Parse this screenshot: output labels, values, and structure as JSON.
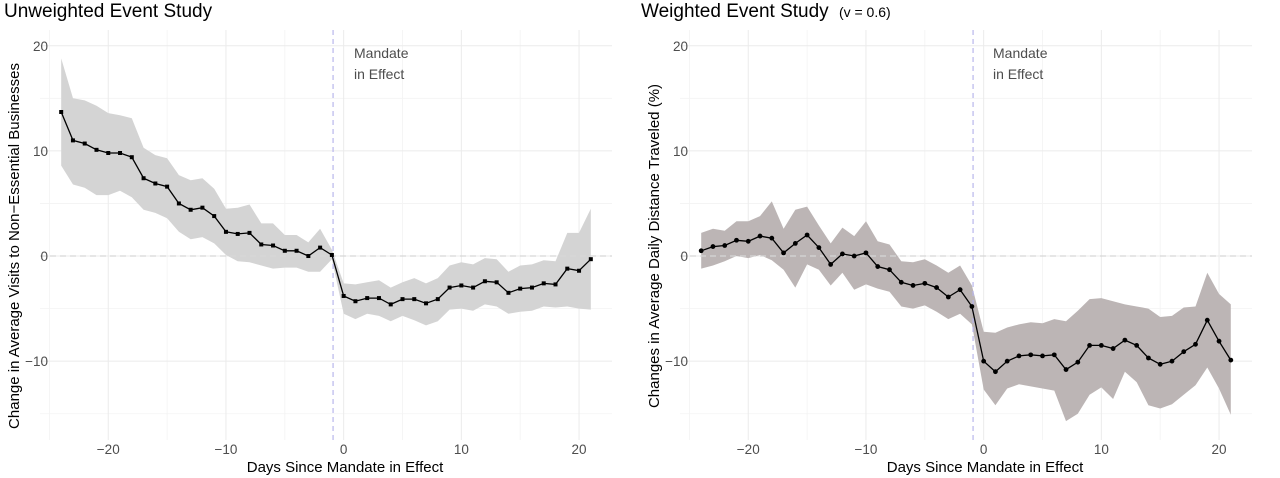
{
  "chart_data": [
    {
      "type": "line",
      "title": "Unweighted Event Study",
      "subtitle": "",
      "xlabel": "Days Since Mandate in Effect",
      "ylabel": "Change in Average Visits to Non−Essential Businesses",
      "xlim": [
        -25.8,
        22.8
      ],
      "ylim": [
        -17.5,
        21.5
      ],
      "x_ticks": [
        -20,
        -10,
        0,
        10,
        20
      ],
      "x_tick_labels": [
        "−20",
        "−10",
        "0",
        "10",
        "20"
      ],
      "y_ticks": [
        -10,
        0,
        10,
        20
      ],
      "y_tick_labels": [
        "−10",
        "0",
        "10",
        "20"
      ],
      "grid": true,
      "reference_lines": {
        "vertical_x": -0.9,
        "horizontal_y": 0
      },
      "annotation": [
        "Mandate",
        "in Effect"
      ],
      "marker": "square",
      "band_color": "#d4d4d4",
      "line_color": "#000000",
      "x": [
        -24,
        -23,
        -22,
        -21,
        -20,
        -19,
        -18,
        -17,
        -16,
        -15,
        -14,
        -13,
        -12,
        -11,
        -10,
        -9,
        -8,
        -7,
        -6,
        -5,
        -4,
        -3,
        -2,
        -1,
        0,
        1,
        2,
        3,
        4,
        5,
        6,
        7,
        8,
        9,
        10,
        11,
        12,
        13,
        14,
        15,
        16,
        17,
        18,
        19,
        20,
        21
      ],
      "y": [
        13.7,
        11.0,
        10.7,
        10.1,
        9.8,
        9.8,
        9.4,
        7.4,
        6.9,
        6.6,
        5.0,
        4.4,
        4.6,
        3.8,
        2.3,
        2.1,
        2.2,
        1.1,
        1.0,
        0.5,
        0.5,
        0.0,
        0.8,
        0.1,
        -3.8,
        -4.3,
        -4.0,
        -4.0,
        -4.6,
        -4.1,
        -4.1,
        -4.5,
        -4.1,
        -3.0,
        -2.8,
        -3.0,
        -2.4,
        -2.5,
        -3.5,
        -3.1,
        -3.0,
        -2.6,
        -2.7,
        -1.2,
        -1.4,
        -0.3
      ],
      "lower": [
        8.6,
        6.8,
        6.5,
        5.8,
        5.8,
        6.2,
        5.6,
        4.4,
        4.1,
        3.6,
        2.3,
        1.6,
        1.8,
        1.2,
        0.1,
        -0.5,
        -0.6,
        -0.9,
        -1.2,
        -1.1,
        -1.1,
        -1.5,
        -1.5,
        -0.3,
        -5.5,
        -6.0,
        -5.5,
        -5.7,
        -6.2,
        -5.7,
        -6.1,
        -6.6,
        -6.2,
        -5.1,
        -5.0,
        -5.2,
        -4.6,
        -4.8,
        -5.5,
        -5.3,
        -5.2,
        -4.8,
        -4.9,
        -4.8,
        -5.0,
        -5.1
      ],
      "upper": [
        18.8,
        15.0,
        14.8,
        14.3,
        13.6,
        13.4,
        13.1,
        10.3,
        9.6,
        9.3,
        7.7,
        7.2,
        7.4,
        6.4,
        4.5,
        4.6,
        4.9,
        3.1,
        3.1,
        2.0,
        2.0,
        1.3,
        2.6,
        0.6,
        -2.6,
        -2.7,
        -2.5,
        -2.3,
        -3.0,
        -2.5,
        -2.1,
        -2.6,
        -2.1,
        -0.9,
        -0.6,
        -0.8,
        -0.2,
        -0.3,
        -1.5,
        -0.9,
        -0.8,
        -0.4,
        -0.5,
        2.2,
        2.2,
        4.5
      ]
    },
    {
      "type": "line",
      "title": "Weighted Event Study",
      "subtitle": "(v = 0.6)",
      "xlabel": "Days Since Mandate in Effect",
      "ylabel": "Changes in Average Daily Distance Traveled (%)",
      "xlim": [
        -25.8,
        22.8
      ],
      "ylim": [
        -17.5,
        21.5
      ],
      "x_ticks": [
        -20,
        -10,
        0,
        10,
        20
      ],
      "x_tick_labels": [
        "−20",
        "−10",
        "0",
        "10",
        "20"
      ],
      "y_ticks": [
        -10,
        0,
        10,
        20
      ],
      "y_tick_labels": [
        "−10",
        "0",
        "10",
        "20"
      ],
      "grid": true,
      "reference_lines": {
        "vertical_x": -0.9,
        "horizontal_y": 0
      },
      "annotation": [
        "Mandate",
        "in Effect"
      ],
      "marker": "circle",
      "band_color": "#bcb5b5",
      "line_color": "#000000",
      "x": [
        -24,
        -23,
        -22,
        -21,
        -20,
        -19,
        -18,
        -17,
        -16,
        -15,
        -14,
        -13,
        -12,
        -11,
        -10,
        -9,
        -8,
        -7,
        -6,
        -5,
        -4,
        -3,
        -2,
        -1,
        0,
        1,
        2,
        3,
        4,
        5,
        6,
        7,
        8,
        9,
        10,
        11,
        12,
        13,
        14,
        15,
        16,
        17,
        18,
        19,
        20,
        21
      ],
      "y": [
        0.5,
        0.9,
        1.0,
        1.5,
        1.4,
        1.9,
        1.7,
        0.3,
        1.2,
        2.0,
        0.8,
        -0.8,
        0.2,
        0.0,
        0.3,
        -1.0,
        -1.3,
        -2.5,
        -2.8,
        -2.6,
        -3.0,
        -3.9,
        -3.2,
        -4.8,
        -10.0,
        -11.0,
        -10.0,
        -9.5,
        -9.4,
        -9.5,
        -9.4,
        -10.8,
        -10.1,
        -8.5,
        -8.5,
        -8.8,
        -8.0,
        -8.5,
        -9.7,
        -10.3,
        -10.0,
        -9.1,
        -8.4,
        -6.1,
        -8.1,
        -9.9
      ],
      "lower": [
        -1.2,
        -0.9,
        -0.5,
        0.0,
        -0.2,
        0.1,
        -0.4,
        -1.3,
        -3.0,
        -0.8,
        -1.3,
        -2.8,
        -1.6,
        -3.2,
        -2.7,
        -3.1,
        -3.4,
        -4.8,
        -5.0,
        -4.7,
        -5.3,
        -6.0,
        -5.5,
        -6.5,
        -12.7,
        -14.2,
        -12.6,
        -12.2,
        -12.4,
        -12.6,
        -12.8,
        -15.7,
        -15.0,
        -13.2,
        -12.5,
        -13.6,
        -11.0,
        -12.0,
        -14.2,
        -14.5,
        -14.1,
        -13.2,
        -12.3,
        -10.6,
        -12.6,
        -15.1
      ],
      "upper": [
        2.2,
        2.6,
        2.4,
        3.3,
        3.3,
        3.8,
        5.2,
        2.6,
        4.4,
        4.7,
        2.9,
        1.2,
        2.7,
        1.9,
        3.3,
        1.4,
        1.1,
        -0.5,
        -0.6,
        -0.3,
        -0.9,
        -1.6,
        -0.9,
        -2.8,
        -7.2,
        -7.3,
        -6.8,
        -6.5,
        -6.3,
        -6.4,
        -6.0,
        -6.2,
        -5.2,
        -4.1,
        -4.0,
        -4.3,
        -4.6,
        -4.8,
        -5.0,
        -5.8,
        -5.7,
        -4.9,
        -4.8,
        -1.6,
        -3.6,
        -4.6
      ]
    }
  ]
}
